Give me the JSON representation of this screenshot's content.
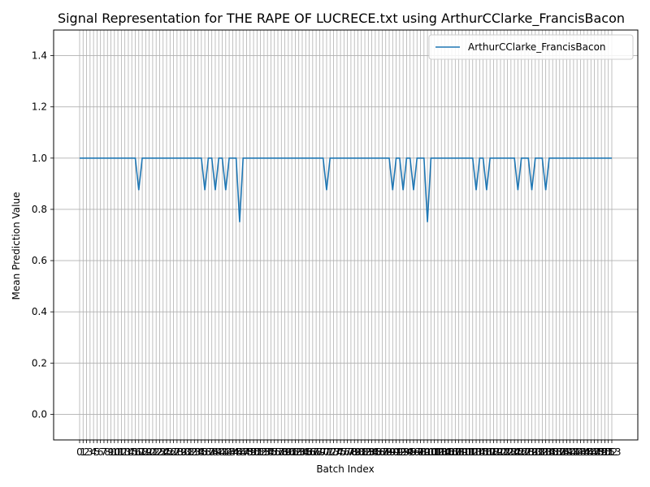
{
  "chart_data": {
    "type": "line",
    "title": "Signal Representation for THE RAPE OF LUCRECE.txt using ArthurCClarke_FrancisBacon",
    "xlabel": "Batch Index",
    "ylabel": "Mean Prediction Value",
    "xlim": [
      0,
      153
    ],
    "ylim": [
      -0.1,
      1.5
    ],
    "y_ticks": [
      0.0,
      0.2,
      0.4,
      0.6,
      0.8,
      1.0,
      1.2,
      1.4
    ],
    "y_tick_labels": [
      "0.0",
      "0.2",
      "0.4",
      "0.6",
      "0.8",
      "1.0",
      "1.2",
      "1.4"
    ],
    "x_ticks_note": "one tick per batch index 0..153, labels overlap",
    "grid": true,
    "legend_position": "top-right",
    "series": [
      {
        "name": "ArthurCClarke_FrancisBacon",
        "color": "#1f77b4",
        "dips": [
          {
            "x": 17,
            "y": 0.875
          },
          {
            "x": 36,
            "y": 0.875
          },
          {
            "x": 39,
            "y": 0.875
          },
          {
            "x": 42,
            "y": 0.875
          },
          {
            "x": 46,
            "y": 0.75
          },
          {
            "x": 71,
            "y": 0.875
          },
          {
            "x": 90,
            "y": 0.875
          },
          {
            "x": 93,
            "y": 0.875
          },
          {
            "x": 96,
            "y": 0.875
          },
          {
            "x": 100,
            "y": 0.75
          },
          {
            "x": 114,
            "y": 0.875
          },
          {
            "x": 117,
            "y": 0.875
          },
          {
            "x": 126,
            "y": 0.875
          },
          {
            "x": 130,
            "y": 0.875
          },
          {
            "x": 134,
            "y": 0.875
          }
        ],
        "baseline": 1.0
      }
    ]
  }
}
